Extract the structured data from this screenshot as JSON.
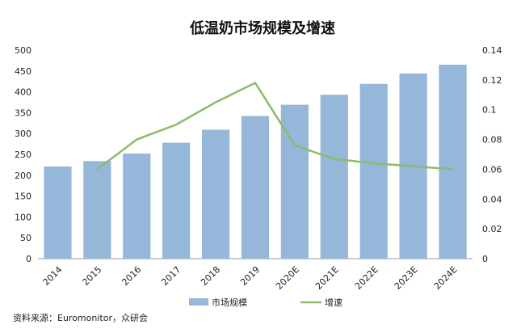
{
  "chart_data": {
    "type": "bar",
    "title": "低温奶市场规模及增速",
    "categories": [
      "2014",
      "2015",
      "2016",
      "2017",
      "2018",
      "2019",
      "2020E",
      "2021E",
      "2022E",
      "2023E",
      "2024E"
    ],
    "series": [
      {
        "name": "市场规模",
        "type": "bar",
        "axis": "left",
        "color": "#95b7d9",
        "values": [
          221,
          234,
          252,
          278,
          309,
          342,
          369,
          393,
          419,
          444,
          465
        ]
      },
      {
        "name": "增速",
        "type": "line",
        "axis": "right",
        "color": "#8cbb6a",
        "values": [
          null,
          0.06,
          0.08,
          0.09,
          0.105,
          0.118,
          0.076,
          0.067,
          0.064,
          0.062,
          0.06
        ]
      }
    ],
    "y_left": {
      "min": 0,
      "max": 500,
      "ticks": [
        "0",
        "50",
        "100",
        "150",
        "200",
        "250",
        "300",
        "350",
        "400",
        "450",
        "500"
      ]
    },
    "y_right": {
      "min": 0,
      "max": 0.14,
      "ticks": [
        "0",
        "0.02",
        "0.04",
        "0.06",
        "0.08",
        "0.1",
        "0.12",
        "0.14"
      ]
    },
    "grid": false,
    "legend_position": "bottom",
    "source": "资料来源：Euromonitor，众研会"
  }
}
